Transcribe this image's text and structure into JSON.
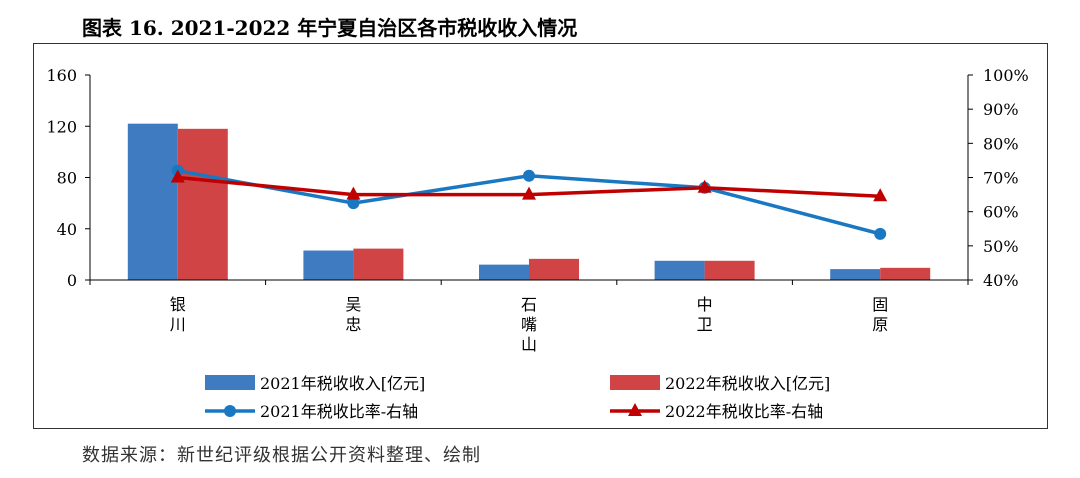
{
  "title": "图表 16. 2021-2022 年宁夏自治区各市税收收入情况",
  "source": "数据来源：新世纪评级根据公开资料整理、绘制",
  "chart_data": {
    "type": "bar",
    "categories": [
      [
        "银",
        "川"
      ],
      [
        "吴",
        "忠"
      ],
      [
        "石",
        "嘴",
        "山"
      ],
      [
        "中",
        "卫"
      ],
      [
        "固",
        "原"
      ]
    ],
    "series": [
      {
        "name": "2021年税收收入[亿元]",
        "type": "bar",
        "axis": "left",
        "color": "#3e7bc0",
        "values": [
          122,
          23,
          12,
          15,
          8.5
        ]
      },
      {
        "name": "2022年税收收入[亿元]",
        "type": "bar",
        "axis": "left",
        "color": "#d04445",
        "values": [
          118,
          24.5,
          16.5,
          15,
          9.5
        ]
      },
      {
        "name": "2021年税收比率-右轴",
        "type": "line",
        "axis": "right",
        "color": "#1a78c2",
        "marker": "circle",
        "values": [
          72,
          62.5,
          70.5,
          67,
          53.5
        ]
      },
      {
        "name": "2022年税收比率-右轴",
        "type": "line",
        "axis": "right",
        "color": "#c00000",
        "marker": "triangle",
        "values": [
          70,
          65,
          65,
          67,
          64.5
        ]
      }
    ],
    "y_left": {
      "min": 0,
      "max": 160,
      "ticks": [
        "0",
        "40",
        "80",
        "120",
        "160"
      ]
    },
    "y_right": {
      "min": 40,
      "max": 100,
      "ticks": [
        "40%",
        "50%",
        "60%",
        "70%",
        "80%",
        "90%",
        "100%"
      ]
    },
    "legend_position": "bottom"
  }
}
